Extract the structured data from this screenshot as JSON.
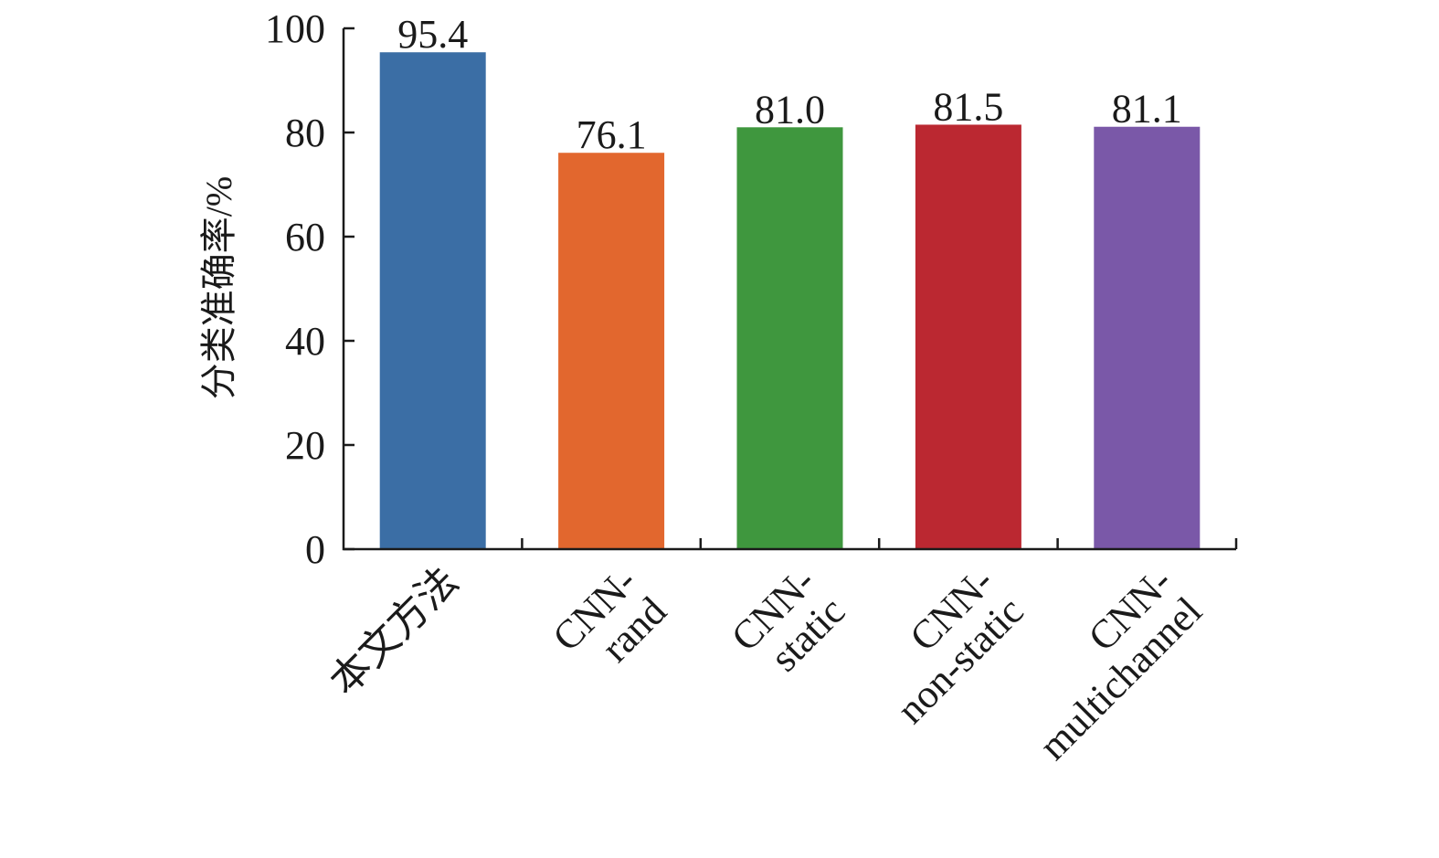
{
  "chart_data": {
    "type": "bar",
    "title": "",
    "xlabel": "",
    "ylabel": "分类准确率/%",
    "ylim": [
      0,
      100
    ],
    "yticks": [
      0,
      20,
      40,
      60,
      80,
      100
    ],
    "grid": false,
    "categories": [
      [
        "本文方法"
      ],
      [
        "CNN-",
        "rand"
      ],
      [
        "CNN-",
        "static"
      ],
      [
        "CNN-",
        "non-static"
      ],
      [
        "CNN-",
        "multichannel"
      ]
    ],
    "values": [
      95.4,
      76.1,
      81.0,
      81.5,
      81.1
    ],
    "value_labels": [
      "95.4",
      "76.1",
      "81.0",
      "81.5",
      "81.1"
    ],
    "colors": [
      "#3b6ea5",
      "#e2672e",
      "#3f973e",
      "#bb2831",
      "#7a58a8"
    ]
  }
}
